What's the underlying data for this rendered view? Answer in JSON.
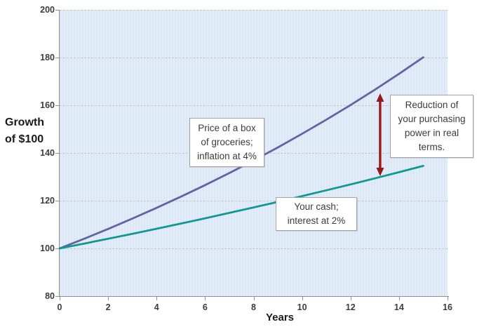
{
  "chart_data": {
    "type": "line",
    "title": "",
    "xlabel": "Years",
    "ylabel": "Growth of $100",
    "ylabel_display": "Growth\nof $100",
    "xlim": [
      0,
      16
    ],
    "ylim": [
      80,
      200
    ],
    "x_ticks": [
      0,
      2,
      4,
      6,
      8,
      10,
      12,
      14,
      16
    ],
    "y_ticks": [
      80,
      100,
      120,
      140,
      160,
      180,
      200
    ],
    "grid": true,
    "legend": "none",
    "plot_bg": "#DCE7F6",
    "gridline_color": "#C6C6C6",
    "x": [
      0,
      1,
      2,
      3,
      4,
      5,
      6,
      7,
      8,
      9,
      10,
      11,
      12,
      13,
      14,
      15
    ],
    "series": [
      {
        "name": "Price of a box of groceries; inflation at 4%",
        "color": "#6463A2",
        "values": [
          100,
          104,
          108.16,
          112.49,
          116.99,
          121.67,
          126.53,
          131.59,
          136.86,
          142.33,
          148.02,
          153.95,
          160.1,
          166.51,
          173.17,
          180.09
        ]
      },
      {
        "name": "Your cash; interest at 2%",
        "color": "#10998F",
        "values": [
          100,
          102,
          104.04,
          106.12,
          108.24,
          110.41,
          112.62,
          114.87,
          117.17,
          119.51,
          121.9,
          124.34,
          126.82,
          129.36,
          131.95,
          134.59
        ]
      }
    ],
    "annotations": {
      "groceries_label": "Price of a box\nof groceries;\ninflation at 4%",
      "cash_label": "Your cash;\ninterest at 2%",
      "reduction_label": "Reduction of\nyour purchasing\npower in real\nterms.",
      "arrow": {
        "year": 13.22,
        "from_value": 165.0,
        "to_value": 130.3,
        "color": "#96191C"
      }
    }
  }
}
